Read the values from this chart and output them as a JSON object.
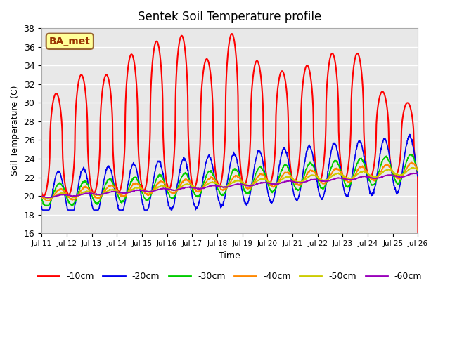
{
  "title": "Sentek Soil Temperature profile",
  "xlabel": "Time",
  "ylabel": "Soil Temperature (C)",
  "ylim": [
    16,
    38
  ],
  "xlim": [
    0,
    15
  ],
  "annotation_text": "BA_met",
  "annotation_bg": "#FFFF99",
  "annotation_border": "#996633",
  "background_color": "#E8E8E8",
  "grid_color": "white",
  "series_colors": [
    "#FF0000",
    "#0000EE",
    "#00CC00",
    "#FF8800",
    "#CCCC00",
    "#9900BB"
  ],
  "series_labels": [
    "-10cm",
    "-20cm",
    "-30cm",
    "-40cm",
    "-50cm",
    "-60cm"
  ],
  "xtick_labels": [
    "Jul 11",
    "Jul 12",
    "Jul 13",
    "Jul 14",
    "Jul 15",
    "Jul 16",
    "Jul 17",
    "Jul 18",
    "Jul 19",
    "Jul 20",
    "Jul 21",
    "Jul 22",
    "Jul 23",
    "Jul 24",
    "Jul 25",
    "Jul 26"
  ],
  "ytick_values": [
    16,
    18,
    20,
    22,
    24,
    26,
    28,
    30,
    32,
    34,
    36,
    38
  ],
  "figsize": [
    6.4,
    4.8
  ],
  "dpi": 100
}
